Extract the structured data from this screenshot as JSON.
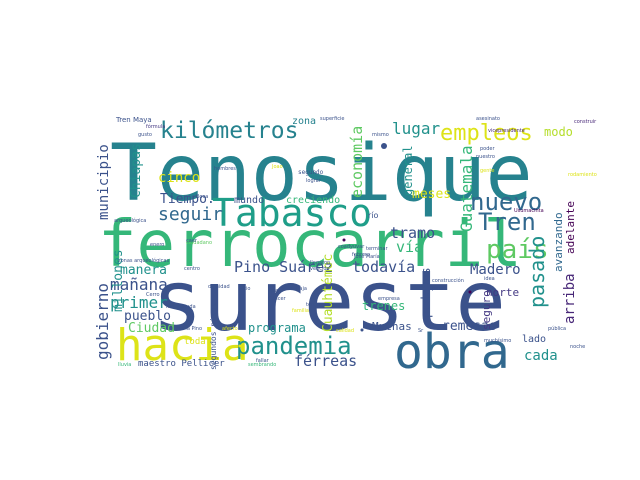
{
  "palette": {
    "navy": "#3b528b",
    "blue": "#31688e",
    "teal": "#21918c",
    "turq": "#26828e",
    "green": "#35b779",
    "lime": "#5ec962",
    "yellowgreen": "#b5de2b",
    "yellow": "#dde318",
    "purple": "#482878",
    "darkpurple": "#440154",
    "violet": "#443983",
    "seagreen": "#1f9e89"
  },
  "words": [
    {
      "key": "tenosique",
      "text": "Tenosique",
      "color": "turq"
    },
    {
      "key": "sureste",
      "text": "sureste",
      "color": "navy"
    },
    {
      "key": "ferrocarril",
      "text": "ferrocarril",
      "color": "green"
    },
    {
      "key": "tabasco",
      "text": "Tabasco",
      "color": "seagreen"
    },
    {
      "key": "obra",
      "text": "obra",
      "color": "blue"
    },
    {
      "key": "hacia",
      "text": "hacia",
      "color": "yellow"
    },
    {
      "key": "pandemia",
      "text": "pandemia",
      "color": "teal"
    },
    {
      "key": "kilometros",
      "text": "kilómetros",
      "color": "turq"
    },
    {
      "key": "empleos",
      "text": "empleos",
      "color": "yellow"
    },
    {
      "key": "tren",
      "text": "Tren",
      "color": "blue"
    },
    {
      "key": "pais",
      "text": "país",
      "color": "lime"
    },
    {
      "key": "nuevo",
      "text": "nuevo",
      "color": "blue"
    },
    {
      "key": "pasado",
      "text": "pasado",
      "color": "teal"
    },
    {
      "key": "lugar",
      "text": "lugar",
      "color": "teal"
    },
    {
      "key": "modo",
      "text": "modo",
      "color": "yellowgreen"
    },
    {
      "key": "municipio",
      "text": "municipio",
      "color": "navy"
    },
    {
      "key": "chiapas",
      "text": "Chiapas",
      "color": "teal"
    },
    {
      "key": "seguir",
      "text": "seguir",
      "color": "blue"
    },
    {
      "key": "cinco",
      "text": "cinco",
      "color": "yellow"
    },
    {
      "key": "tiempo",
      "text": "Tiempo.",
      "color": "navy"
    },
    {
      "key": "mundo",
      "text": "mundo",
      "color": "navy"
    },
    {
      "key": "creciendo",
      "text": "creciendo",
      "color": "green"
    },
    {
      "key": "zona",
      "text": "zona",
      "color": "turq"
    },
    {
      "key": "segundo",
      "text": "segundo",
      "color": "navy"
    },
    {
      "key": "economia",
      "text": "economía",
      "color": "lime"
    },
    {
      "key": "general",
      "text": "general",
      "color": "teal"
    },
    {
      "key": "meses",
      "text": "meses",
      "color": "yellow"
    },
    {
      "key": "guatemala",
      "text": "Guatemala",
      "color": "green"
    },
    {
      "key": "tramo",
      "text": "tramo",
      "color": "navy"
    },
    {
      "key": "via",
      "text": "vía",
      "color": "green"
    },
    {
      "key": "avanzando",
      "text": "avanzando",
      "color": "blue"
    },
    {
      "key": "adelante",
      "text": "adelante",
      "color": "darkpurple"
    },
    {
      "key": "norte",
      "text": "norte",
      "color": "violet"
    },
    {
      "key": "madero",
      "text": "Madero",
      "color": "navy"
    },
    {
      "key": "arriba",
      "text": "arriba",
      "color": "purple"
    },
    {
      "key": "gobierno",
      "text": "gobierno",
      "color": "navy"
    },
    {
      "key": "millones",
      "text": "millones",
      "color": "teal"
    },
    {
      "key": "manana",
      "text": "mañana",
      "color": "navy"
    },
    {
      "key": "manera",
      "text": "manera",
      "color": "teal"
    },
    {
      "key": "pino_suarez",
      "text": "Pino Suárez",
      "color": "navy"
    },
    {
      "key": "todavia",
      "text": "todavía",
      "color": "navy"
    },
    {
      "key": "primer",
      "text": "primer",
      "color": "teal"
    },
    {
      "key": "pueblo",
      "text": "pueblo",
      "color": "navy"
    },
    {
      "key": "ciudad",
      "text": "Ciudad",
      "color": "lime"
    },
    {
      "key": "programa",
      "text": "programa",
      "color": "teal"
    },
    {
      "key": "cuauhtemoc",
      "text": "Cuauhtémoc",
      "color": "yellowgreen"
    },
    {
      "key": "podemos",
      "text": "podemos",
      "color": "navy"
    },
    {
      "key": "trenes",
      "text": "trenes",
      "color": "green"
    },
    {
      "key": "remesas",
      "text": "remesas",
      "color": "navy"
    },
    {
      "key": "seguro",
      "text": "seguro",
      "color": "violet"
    },
    {
      "key": "lado",
      "text": "lado",
      "color": "navy"
    },
    {
      "key": "cada",
      "text": "cada",
      "color": "teal"
    },
    {
      "key": "muchas",
      "text": "Muchas",
      "color": "navy"
    },
    {
      "key": "ferreas",
      "text": "férreas",
      "color": "navy"
    },
    {
      "key": "toda",
      "text": "toda",
      "color": "yellow"
    },
    {
      "key": "maestro_pellicer",
      "text": "maestro Pellicer",
      "color": "navy"
    },
    {
      "key": "segundos_pisos",
      "text": "segundos pisos",
      "color": "navy"
    },
    {
      "key": "tren_maya",
      "text": "Tren Maya",
      "color": "navy"
    },
    {
      "key": "formula",
      "text": "fórmula",
      "color": "violet"
    },
    {
      "key": "superficie",
      "text": "superficie",
      "color": "navy"
    },
    {
      "key": "asesinato",
      "text": "asesinato",
      "color": "navy"
    },
    {
      "key": "vicepresidente",
      "text": "vicepresidente",
      "color": "purple"
    },
    {
      "key": "construir",
      "text": "construir",
      "color": "purple"
    },
    {
      "key": "rodamiento",
      "text": "rodamiento",
      "color": "yellow"
    },
    {
      "key": "usumacinta",
      "text": "Usumacinta",
      "color": "darkpurple"
    },
    {
      "key": "rio",
      "text": "río",
      "color": "navy"
    },
    {
      "key": "zonas_arqueologicas",
      "text": "zonas arqueológicas",
      "color": "navy"
    },
    {
      "key": "arqueologica",
      "text": "arqueológica",
      "color": "navy"
    },
    {
      "key": "boca",
      "text": "Boca",
      "color": "navy"
    },
    {
      "key": "jose_maria",
      "text": "José María",
      "color": "navy"
    },
    {
      "key": "febrero",
      "text": "febrero",
      "color": "navy"
    },
    {
      "key": "terminar",
      "text": "terminar",
      "color": "navy"
    },
    {
      "key": "construccion",
      "text": "construcción",
      "color": "navy"
    },
    {
      "key": "empresa",
      "text": "empresa",
      "color": "navy"
    },
    {
      "key": "tercer",
      "text": "tercer",
      "color": "navy"
    },
    {
      "key": "historia",
      "text": "historia",
      "color": "navy"
    },
    {
      "key": "dignidad",
      "text": "dignidad",
      "color": "navy"
    },
    {
      "key": "sitio",
      "text": "sitio",
      "color": "navy"
    },
    {
      "key": "maria_pino",
      "text": "María Pino",
      "color": "navy"
    },
    {
      "key": "centro",
      "text": "centro",
      "color": "navy"
    },
    {
      "key": "cerro",
      "text": "Cerro",
      "color": "navy"
    },
    {
      "key": "lluvia",
      "text": "lluvia",
      "color": "green"
    },
    {
      "key": "sembrando",
      "text": "sembrando",
      "color": "green"
    },
    {
      "key": "fallar",
      "text": "fallar",
      "color": "navy"
    },
    {
      "key": "calidad",
      "text": "calidad",
      "color": "yellow"
    },
    {
      "key": "noche",
      "text": "noche",
      "color": "navy"
    },
    {
      "key": "publica",
      "text": "pública",
      "color": "navy"
    },
    {
      "key": "idea",
      "text": "idea",
      "color": "navy"
    },
    {
      "key": "muchisimo",
      "text": "muchísimo",
      "color": "navy"
    },
    {
      "key": "gente",
      "text": "gente",
      "color": "yellow"
    },
    {
      "key": "poder",
      "text": "poder",
      "color": "navy"
    },
    {
      "key": "nuestro",
      "text": "nuestro",
      "color": "navy"
    },
    {
      "key": "hombres",
      "text": "hombres",
      "color": "navy"
    },
    {
      "key": "gusto",
      "text": "gusto",
      "color": "navy"
    },
    {
      "key": "enero",
      "text": "enero",
      "color": "navy"
    },
    {
      "key": "deuda",
      "text": "deuda",
      "color": "navy"
    },
    {
      "key": "baja",
      "text": "Baja",
      "color": "navy"
    },
    {
      "key": "gran",
      "text": "gran",
      "color": "navy"
    },
    {
      "key": "cancer",
      "text": "Cáncer",
      "color": "navy"
    },
    {
      "key": "mismo",
      "text": "mismo",
      "color": "navy"
    },
    {
      "key": "afecto",
      "text": "afecto",
      "color": "yellow"
    },
    {
      "key": "familia",
      "text": "familia",
      "color": "yellow"
    },
    {
      "key": "llegaron",
      "text": "llegaron",
      "color": "navy"
    },
    {
      "key": "vencido",
      "text": "vencido",
      "color": "navy"
    },
    {
      "key": "coadyuvar",
      "text": "coadyuvar",
      "color": "navy"
    },
    {
      "key": "pesar",
      "text": "pesar",
      "color": "navy"
    },
    {
      "key": "joao",
      "text": "Joao",
      "color": "yellow"
    },
    {
      "key": "lograr",
      "text": "lograr",
      "color": "navy"
    },
    {
      "key": "ciudadano",
      "text": "ciudadano",
      "color": "lime"
    },
    {
      "key": "sr",
      "text": "Sr",
      "color": "navy"
    },
    {
      "key": "caer",
      "text": "caer",
      "color": "navy"
    }
  ]
}
